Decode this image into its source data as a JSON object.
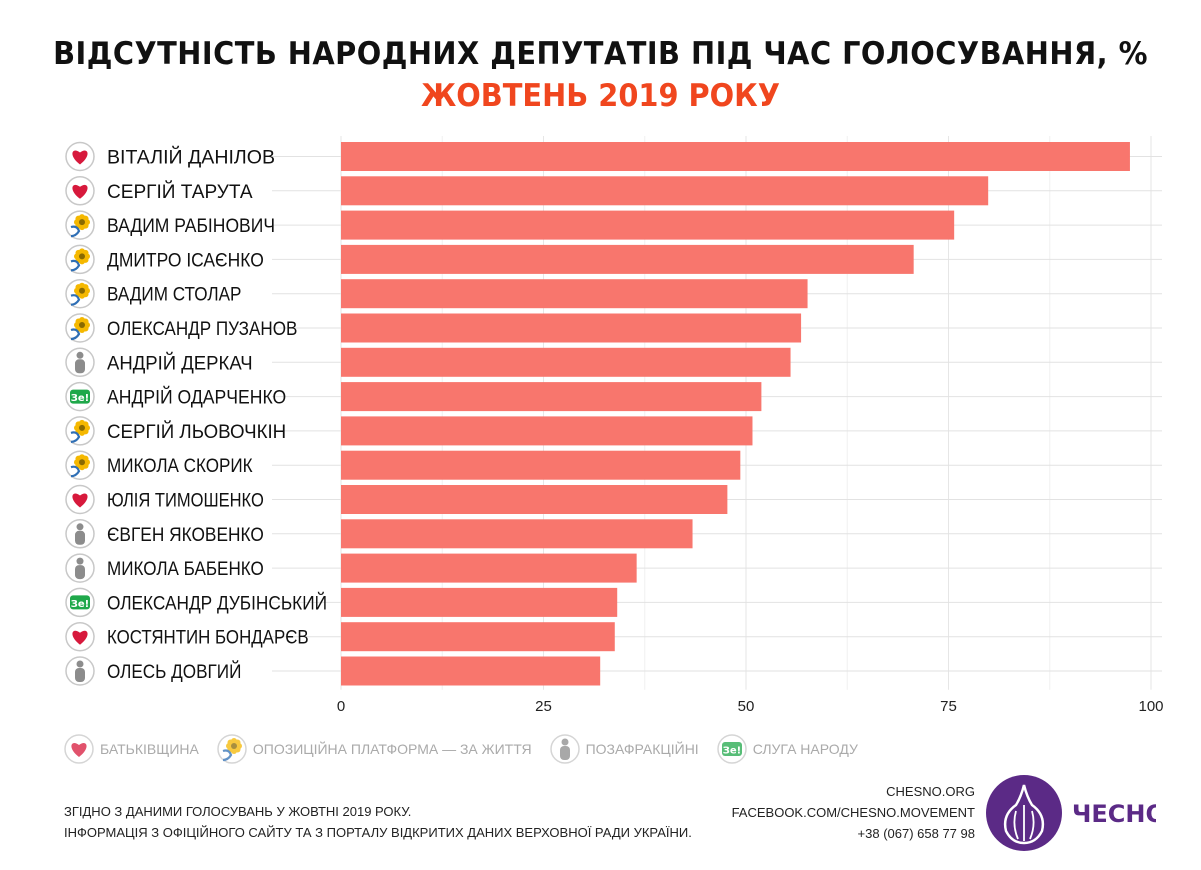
{
  "title": "ВІДСУТНІСТЬ НАРОДНИХ ДЕПУТАТІВ ПІД ЧАС ГОЛОСУВАННЯ, %",
  "subtitle": "ЖОВТЕНЬ 2019 РОКУ",
  "colors": {
    "bar": "#f8766d",
    "accent": "#f0461e",
    "brand": "#5b2a86",
    "heart": "#d7193c",
    "ze": "#1fa84a"
  },
  "chart_data": {
    "type": "bar",
    "orientation": "horizontal",
    "title": "ВІДСУТНІСТЬ НАРОДНИХ ДЕПУТАТІВ ПІД ЧАС ГОЛОСУВАННЯ, %",
    "xlim": [
      0,
      100
    ],
    "ticks": [
      "0",
      "25",
      "50",
      "75",
      "100"
    ],
    "grid": true,
    "categories": [
      "ВІТАЛІЙ ДАНІЛОВ",
      "СЕРГІЙ ТАРУТА",
      "ВАДИМ РАБІНОВИЧ",
      "ДМИТРО ІСАЄНКО",
      "ВАДИМ СТОЛАР",
      "ОЛЕКСАНДР ПУЗАНОВ",
      "АНДРІЙ ДЕРКАЧ",
      "АНДРІЙ ОДАРЧЕНКО",
      "СЕРГІЙ ЛЬОВОЧКІН",
      "МИКОЛА СКОРИК",
      "ЮЛІЯ ТИМОШЕНКО",
      "ЄВГЕН ЯКОВЕНКО",
      "МИКОЛА БАБЕНКО",
      "ОЛЕКСАНДР ДУБІНСЬКИЙ",
      "КОСТЯНТИН БОНДАРЄВ",
      "ОЛЕСЬ ДОВГИЙ"
    ],
    "parties": [
      "heart",
      "heart",
      "opzzh",
      "opzzh",
      "opzzh",
      "opzzh",
      "person",
      "ze",
      "opzzh",
      "opzzh",
      "heart",
      "person",
      "person",
      "ze",
      "heart",
      "person"
    ],
    "values": [
      97.4,
      79.9,
      75.7,
      70.7,
      57.6,
      56.8,
      55.5,
      51.9,
      50.8,
      49.3,
      47.7,
      43.4,
      36.5,
      34.1,
      33.8,
      32.0
    ]
  },
  "legend": [
    {
      "icon": "heart",
      "label": "БАТЬКІВЩИНА"
    },
    {
      "icon": "opzzh",
      "label": "ОПОЗИЦІЙНА ПЛАТФОРМА — ЗА ЖИТТЯ"
    },
    {
      "icon": "person",
      "label": "ПОЗАФРАКЦІЙНІ"
    },
    {
      "icon": "ze",
      "label": "СЛУГА НАРОДУ"
    }
  ],
  "ze_text": "Зе!",
  "notes": [
    "ЗГІДНО З ДАНИМИ ГОЛОСУВАНЬ У ЖОВТНІ 2019 РОКУ.",
    "ІНФОРМАЦІЯ З ОФІЦІЙНОГО САЙТУ ТА З ПОРТАЛУ ВІДКРИТИХ ДАНИХ ВЕРХОВНОЇ РАДИ УКРАЇНИ."
  ],
  "contacts": [
    "CHESNO.ORG",
    "FACEBOOK.COM/CHESNO.MOVEMENT",
    "+38 (067) 658 77 98"
  ],
  "logo_text": "ЧЕСНО"
}
